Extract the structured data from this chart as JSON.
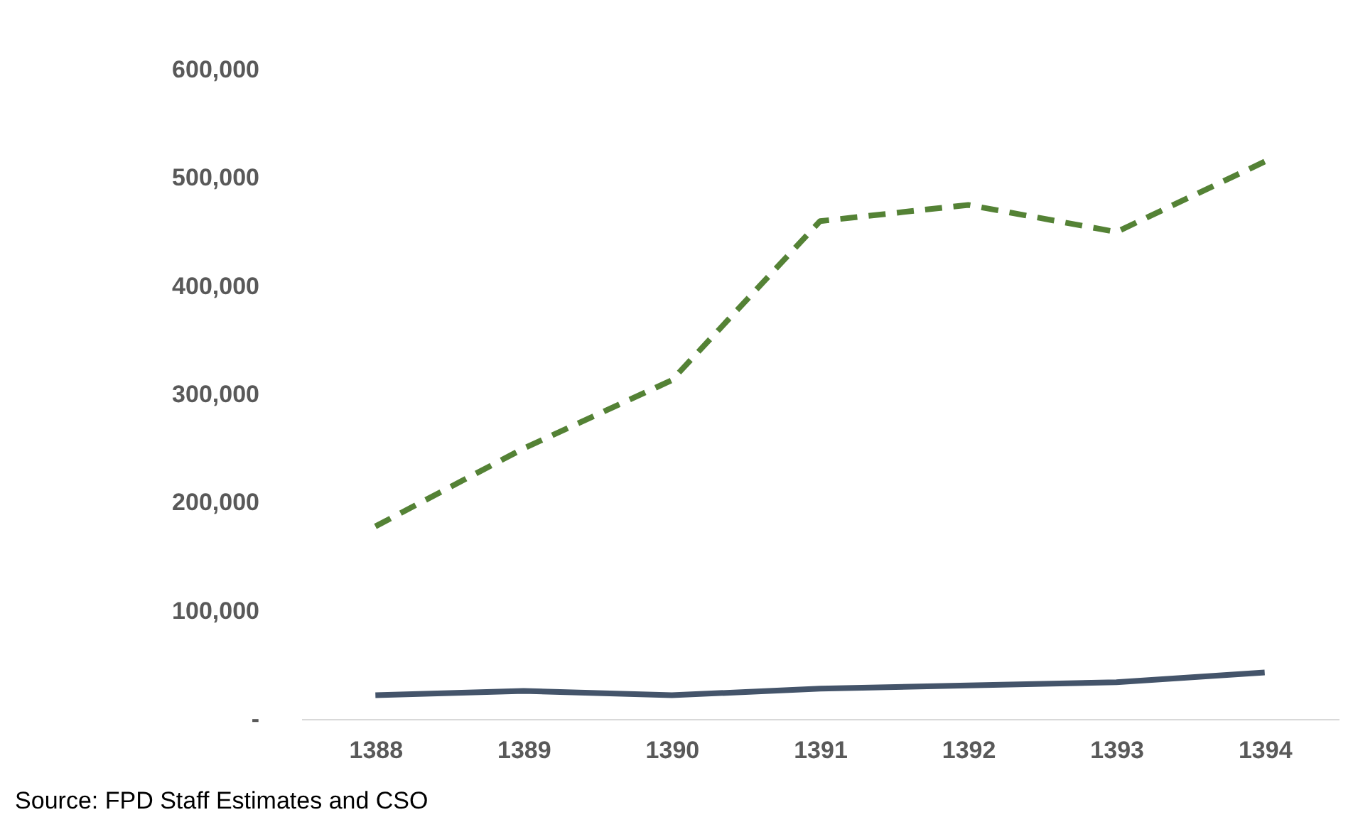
{
  "chart_data": {
    "type": "line",
    "categories": [
      "1388",
      "1389",
      "1390",
      "1391",
      "1392",
      "1393",
      "1394"
    ],
    "series": [
      {
        "color": "#548235",
        "line_style": "dashed",
        "values": [
          178000,
          250000,
          313000,
          460000,
          475000,
          450000,
          515000
        ]
      },
      {
        "color": "#44546a",
        "line_style": "solid",
        "values": [
          22000,
          26000,
          22000,
          28000,
          31000,
          34000,
          43000
        ]
      }
    ],
    "ylim": [
      0,
      600000
    ],
    "yticks": [
      {
        "value": 0,
        "label": "-"
      },
      {
        "value": 100000,
        "label": "100,000"
      },
      {
        "value": 200000,
        "label": "200,000"
      },
      {
        "value": 300000,
        "label": "300,000"
      },
      {
        "value": 400000,
        "label": "400,000"
      },
      {
        "value": 500000,
        "label": "500,000"
      },
      {
        "value": 600000,
        "label": "600,000"
      }
    ],
    "grid": false,
    "marker": "none",
    "annotations": [
      "Source: FPD Staff Estimates and CSO"
    ]
  }
}
